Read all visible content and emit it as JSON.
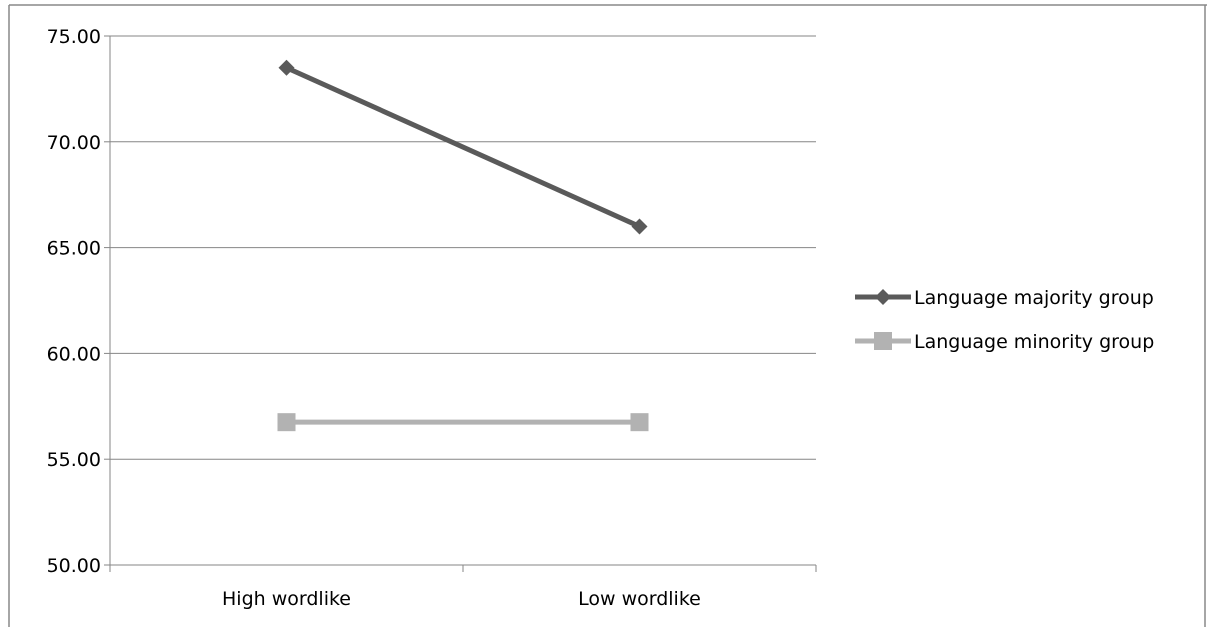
{
  "chart_data": {
    "type": "line",
    "title": "",
    "xlabel": "",
    "ylabel": "",
    "categories": [
      "High wordlike",
      "Low wordlike"
    ],
    "ylim": [
      50,
      75
    ],
    "yticks": [
      "50.00",
      "55.00",
      "60.00",
      "65.00",
      "70.00",
      "75.00"
    ],
    "grid": "horizontal",
    "legend_position": "right",
    "series": [
      {
        "name": "Language majority group",
        "values": [
          73.5,
          66.0
        ],
        "color": "#5a5a5a",
        "marker": "diamond"
      },
      {
        "name": "Language minority group",
        "values": [
          56.75,
          56.75
        ],
        "color": "#b2b2b2",
        "marker": "square"
      }
    ]
  }
}
